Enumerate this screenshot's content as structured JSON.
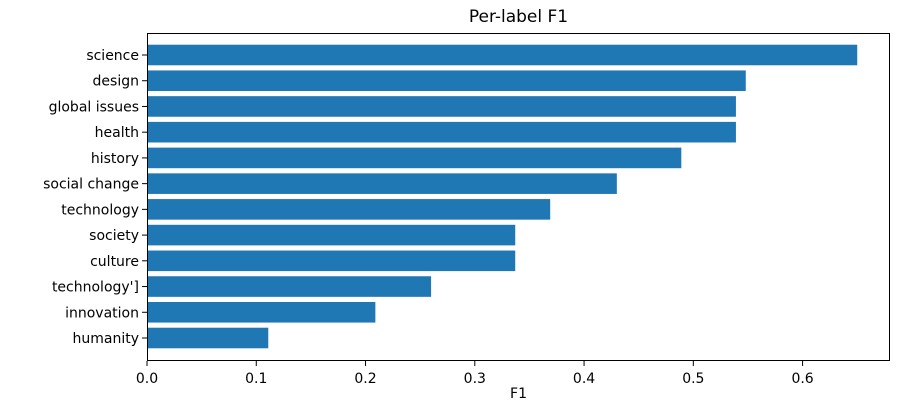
{
  "chart_data": {
    "type": "bar",
    "orientation": "horizontal",
    "title": "Per-label F1",
    "xlabel": "F1",
    "ylabel": "",
    "categories": [
      "science",
      "design",
      "global issues",
      "health",
      "history",
      "social change",
      "technology",
      "society",
      "culture",
      "technology']",
      "innovation",
      "humanity"
    ],
    "values": [
      0.65,
      0.548,
      0.539,
      0.539,
      0.489,
      0.43,
      0.369,
      0.337,
      0.337,
      0.26,
      0.209,
      0.111
    ],
    "xlim": [
      0,
      0.68
    ],
    "xticks": [
      "0.0",
      "0.1",
      "0.2",
      "0.3",
      "0.4",
      "0.5",
      "0.6"
    ],
    "grid": false,
    "bar_color": "#1f77b4"
  }
}
